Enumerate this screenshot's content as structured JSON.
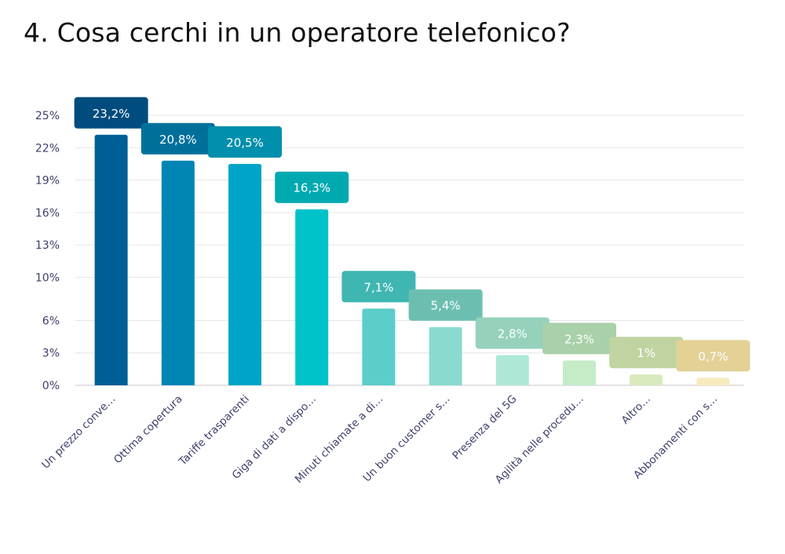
{
  "page": {
    "title": "4. Cosa cerchi in un operatore telefonico?"
  },
  "chart_data": {
    "type": "bar",
    "categories": [
      "Un prezzo conve…",
      "Ottima copertura",
      "Tariffe trasparenti",
      "Giga di dati a dispo…",
      "Minuti chiamate a di…",
      "Un buon customer s…",
      "Presenza del 5G",
      "Agilità nelle procedu…",
      "Altro…",
      "Abbonamenti con s…"
    ],
    "values": [
      23.2,
      20.8,
      20.5,
      16.3,
      7.1,
      5.4,
      2.8,
      2.3,
      1,
      0.7
    ],
    "value_labels": [
      "23,2%",
      "20,8%",
      "20,5%",
      "16,3%",
      "7,1%",
      "5,4%",
      "2,8%",
      "2,3%",
      "1%",
      "0,7%"
    ],
    "bar_colors": [
      "#005e96",
      "#0085b4",
      "#00a4c6",
      "#00c2c9",
      "#5ccdc8",
      "#8adbcf",
      "#ade8d6",
      "#c5ebc7",
      "#d9ebbe",
      "#f7ebbe"
    ],
    "label_colors": [
      "#004c7e",
      "#00709b",
      "#008fac",
      "#00a9b0",
      "#3fb6b2",
      "#6cbfb0",
      "#95d1bb",
      "#a9d1a9",
      "#c0d4a2",
      "#e3d196"
    ],
    "y_ticks": [
      0,
      3,
      6,
      10,
      13,
      16,
      19,
      22,
      25
    ],
    "y_tick_labels": [
      "0%",
      "3%",
      "6%",
      "10%",
      "13%",
      "16%",
      "19%",
      "22%",
      "25%"
    ],
    "ylim": [
      0,
      25
    ],
    "grid": true,
    "xlabel": "",
    "ylabel": ""
  }
}
